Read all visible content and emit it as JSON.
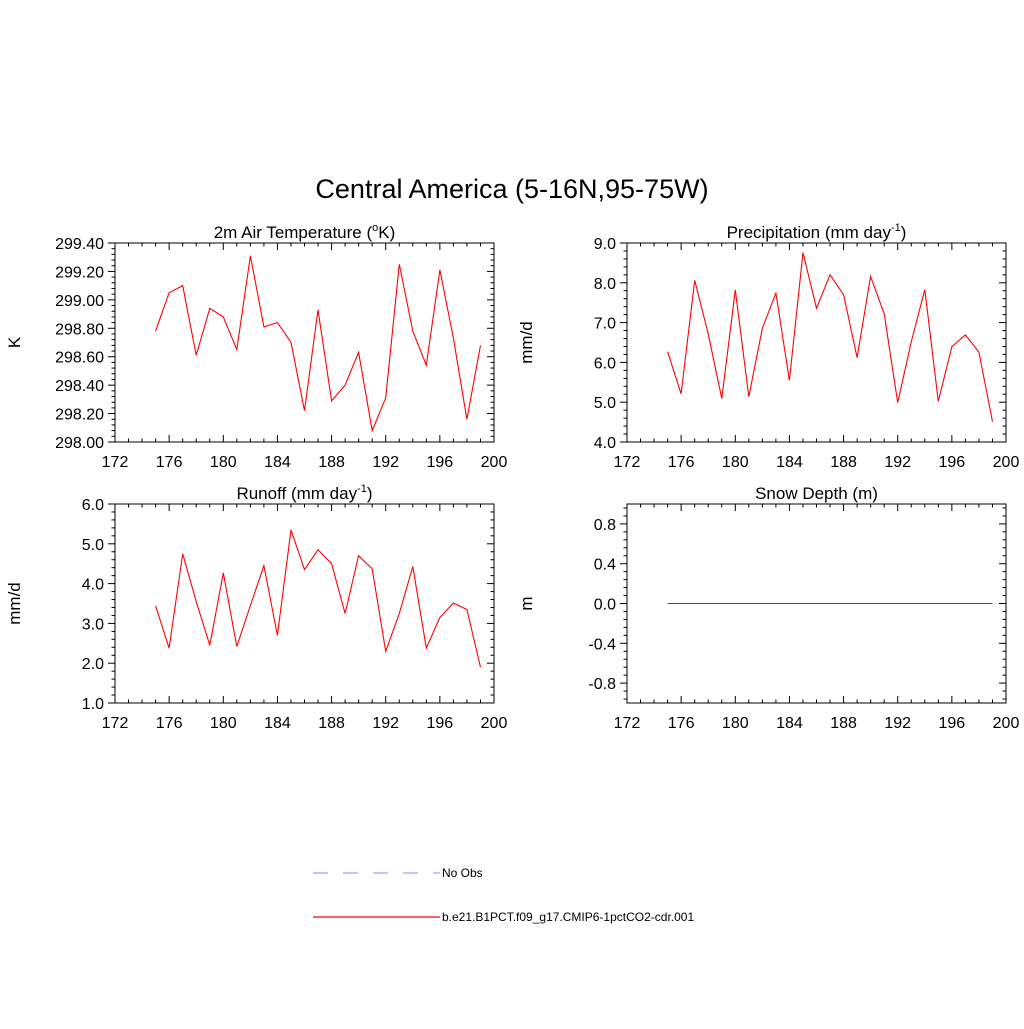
{
  "figure": {
    "title": "Central America (5-16N,95-75W)"
  },
  "legend": {
    "items": [
      {
        "label": "No Obs",
        "color": "#a0a0ff",
        "style": "dashed"
      },
      {
        "label": "b.e21.B1PCT.f09_g17.CMIP6-1pctCO2-cdr.001",
        "color": "#ff0000",
        "style": "solid"
      }
    ]
  },
  "chart_data": [
    {
      "type": "line",
      "title": "2m Air Temperature (°K)",
      "title_parts": {
        "pre": "2m Air Temperature (",
        "sup": "o",
        "post": "K)"
      },
      "xlabel": "",
      "ylabel": "K",
      "xlim": [
        172,
        200
      ],
      "ylim": [
        298.0,
        299.4
      ],
      "xticks": [
        172,
        176,
        180,
        184,
        188,
        192,
        196,
        200
      ],
      "yticks": [
        "298.00",
        "298.20",
        "298.40",
        "298.60",
        "298.80",
        "299.00",
        "299.20",
        "299.40"
      ],
      "series": [
        {
          "color": "#ff0000",
          "x": [
            175,
            176,
            177,
            178,
            179,
            180,
            181,
            182,
            183,
            184,
            185,
            186,
            187,
            188,
            189,
            190,
            191,
            192,
            193,
            194,
            195,
            196,
            197,
            198,
            199
          ],
          "y": [
            298.78,
            299.05,
            299.1,
            298.61,
            298.94,
            298.88,
            298.65,
            299.31,
            298.81,
            298.84,
            298.7,
            298.22,
            298.93,
            298.29,
            298.4,
            298.63,
            298.08,
            298.31,
            299.25,
            298.78,
            298.54,
            299.21,
            298.73,
            298.16,
            298.68
          ]
        }
      ]
    },
    {
      "type": "line",
      "title": "Precipitation (mm day-1)",
      "title_parts": {
        "pre": "Precipitation (mm day",
        "sup": "-1",
        "post": ")"
      },
      "xlabel": "",
      "ylabel": "mm/d",
      "xlim": [
        172,
        200
      ],
      "ylim": [
        4.0,
        9.0
      ],
      "xticks": [
        172,
        176,
        180,
        184,
        188,
        192,
        196,
        200
      ],
      "yticks": [
        "4.0",
        "5.0",
        "6.0",
        "7.0",
        "8.0",
        "9.0"
      ],
      "series": [
        {
          "color": "#ff0000",
          "x": [
            175,
            176,
            177,
            178,
            179,
            180,
            181,
            182,
            183,
            184,
            185,
            186,
            187,
            188,
            189,
            190,
            191,
            192,
            193,
            194,
            195,
            196,
            197,
            198,
            199
          ],
          "y": [
            6.27,
            5.21,
            8.06,
            6.72,
            5.09,
            7.82,
            5.14,
            6.86,
            7.74,
            5.55,
            8.76,
            7.36,
            8.2,
            7.7,
            6.12,
            8.16,
            7.22,
            4.99,
            6.52,
            7.83,
            5.02,
            6.4,
            6.69,
            6.26,
            4.51
          ]
        }
      ]
    },
    {
      "type": "line",
      "title": "Runoff (mm day-1)",
      "title_parts": {
        "pre": "Runoff (mm day",
        "sup": "-1",
        "post": ")"
      },
      "xlabel": "",
      "ylabel": "mm/d",
      "xlim": [
        172,
        200
      ],
      "ylim": [
        1.0,
        6.0
      ],
      "xticks": [
        172,
        176,
        180,
        184,
        188,
        192,
        196,
        200
      ],
      "yticks": [
        "1.0",
        "2.0",
        "3.0",
        "4.0",
        "5.0",
        "6.0"
      ],
      "series": [
        {
          "color": "#ff0000",
          "x": [
            175,
            176,
            177,
            178,
            179,
            180,
            181,
            182,
            183,
            184,
            185,
            186,
            187,
            188,
            189,
            190,
            191,
            192,
            193,
            194,
            195,
            196,
            197,
            198,
            199
          ],
          "y": [
            3.44,
            2.38,
            4.75,
            3.55,
            2.45,
            4.27,
            2.42,
            3.45,
            4.45,
            2.7,
            5.35,
            4.35,
            4.85,
            4.5,
            3.25,
            4.7,
            4.37,
            2.3,
            3.25,
            4.43,
            2.38,
            3.15,
            3.51,
            3.35,
            1.9
          ]
        }
      ]
    },
    {
      "type": "line",
      "title": "Snow Depth (m)",
      "title_parts": {
        "pre": "Snow Depth (m)",
        "sup": "",
        "post": ""
      },
      "xlabel": "",
      "ylabel": "m",
      "xlim": [
        172,
        200
      ],
      "ylim": [
        -1.0,
        1.0
      ],
      "xticks": [
        172,
        176,
        180,
        184,
        188,
        192,
        196,
        200
      ],
      "yticks": [
        "-0.8",
        "-0.4",
        "0.0",
        "0.4",
        "0.8"
      ],
      "series": [
        {
          "color": "#ff0000",
          "x": [
            175,
            176,
            177,
            178,
            179,
            180,
            181,
            182,
            183,
            184,
            185,
            186,
            187,
            188,
            189,
            190,
            191,
            192,
            193,
            194,
            195,
            196,
            197,
            198,
            199
          ],
          "y": [
            0,
            0,
            0,
            0,
            0,
            0,
            0,
            0,
            0,
            0,
            0,
            0,
            0,
            0,
            0,
            0,
            0,
            0,
            0,
            0,
            0,
            0,
            0,
            0,
            0
          ]
        }
      ]
    }
  ]
}
